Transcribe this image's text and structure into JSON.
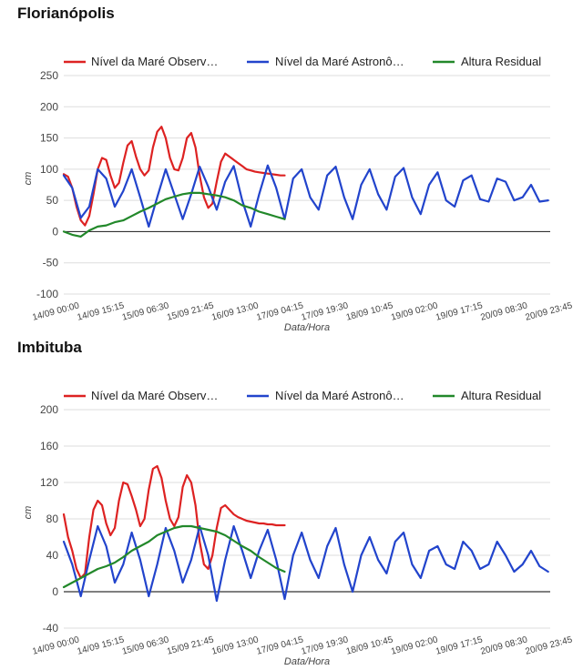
{
  "chart_data": [
    {
      "type": "line",
      "title": "Florianópolis",
      "xlabel": "Data/Hora",
      "ylabel": "cm",
      "ylim": [
        -100,
        250
      ],
      "yticks": [
        -100,
        -50,
        0,
        50,
        100,
        150,
        200,
        250
      ],
      "x_tick_labels": [
        "14/09 00:00",
        "14/09 15:15",
        "15/09 06:30",
        "15/09 21:45",
        "16/09 13:00",
        "17/09 04:15",
        "17/09 19:30",
        "18/09 10:45",
        "19/09 02:00",
        "19/09 17:15",
        "20/09 08:30",
        "20/09 23:45"
      ],
      "grid": true,
      "legend_position": "top",
      "series": [
        {
          "name": "Nível da Maré Observ…",
          "color": "#dd2222",
          "x": [
            0,
            0.1,
            0.2,
            0.3,
            0.4,
            0.5,
            0.6,
            0.7,
            0.8,
            0.9,
            1.0,
            1.1,
            1.2,
            1.3,
            1.4,
            1.5,
            1.6,
            1.7,
            1.8,
            1.9,
            2.0,
            2.1,
            2.2,
            2.3,
            2.4,
            2.5,
            2.6,
            2.7,
            2.8,
            2.9,
            3.0,
            3.1,
            3.2,
            3.3,
            3.4,
            3.5,
            3.6,
            3.7,
            3.8,
            3.9,
            4.0,
            4.1,
            4.2,
            4.3,
            4.4,
            4.5,
            4.6,
            4.7,
            4.8,
            4.9,
            5.0,
            5.1,
            5.2
          ],
          "y": [
            92,
            88,
            70,
            40,
            18,
            10,
            25,
            60,
            100,
            118,
            115,
            90,
            70,
            78,
            110,
            138,
            145,
            120,
            100,
            90,
            98,
            135,
            160,
            168,
            150,
            118,
            100,
            98,
            118,
            150,
            158,
            135,
            90,
            55,
            38,
            45,
            80,
            112,
            125,
            120,
            115,
            110,
            105,
            100,
            98,
            96,
            95,
            94,
            93,
            92,
            91,
            90,
            90
          ]
        },
        {
          "name": "Nível da Maré Astronô…",
          "color": "#2244cc",
          "x": [
            0,
            0.2,
            0.4,
            0.6,
            0.8,
            1.0,
            1.2,
            1.4,
            1.6,
            1.8,
            2.0,
            2.2,
            2.4,
            2.6,
            2.8,
            3.0,
            3.2,
            3.4,
            3.6,
            3.8,
            4.0,
            4.2,
            4.4,
            4.6,
            4.8,
            5.0,
            5.2,
            5.4,
            5.6,
            5.8,
            6.0,
            6.2,
            6.4,
            6.6,
            6.8,
            7.0,
            7.2,
            7.4,
            7.6,
            7.8,
            8.0,
            8.2,
            8.4,
            8.6,
            8.8,
            9.0,
            9.2,
            9.4,
            9.6,
            9.8,
            10.0,
            10.2,
            10.4,
            10.6,
            10.8,
            11.0,
            11.2,
            11.4
          ],
          "y": [
            90,
            70,
            22,
            40,
            100,
            85,
            40,
            65,
            100,
            55,
            8,
            55,
            100,
            60,
            20,
            60,
            104,
            72,
            35,
            80,
            105,
            50,
            8,
            60,
            106,
            70,
            20,
            85,
            100,
            55,
            35,
            90,
            104,
            55,
            20,
            75,
            100,
            60,
            35,
            88,
            102,
            55,
            28,
            75,
            95,
            50,
            40,
            82,
            90,
            52,
            48,
            85,
            80,
            50,
            55,
            75,
            48,
            50
          ]
        },
        {
          "name": "Altura Residual",
          "color": "#22882a",
          "x": [
            0,
            0.2,
            0.4,
            0.6,
            0.8,
            1.0,
            1.2,
            1.4,
            1.6,
            1.8,
            2.0,
            2.2,
            2.4,
            2.6,
            2.8,
            3.0,
            3.2,
            3.4,
            3.6,
            3.8,
            4.0,
            4.2,
            4.4,
            4.6,
            4.8,
            5.0,
            5.2
          ],
          "y": [
            0,
            -5,
            -8,
            2,
            8,
            10,
            15,
            18,
            25,
            32,
            38,
            45,
            52,
            56,
            60,
            62,
            62,
            60,
            58,
            55,
            50,
            42,
            38,
            32,
            28,
            24,
            20
          ]
        }
      ]
    },
    {
      "type": "line",
      "title": "Imbituba",
      "xlabel": "Data/Hora",
      "ylabel": "cm",
      "ylim": [
        -40,
        200
      ],
      "yticks": [
        -40,
        0,
        40,
        80,
        120,
        160,
        200
      ],
      "x_tick_labels": [
        "14/09 00:00",
        "14/09 15:15",
        "15/09 06:30",
        "15/09 21:45",
        "16/09 13:00",
        "17/09 04:15",
        "17/09 19:30",
        "18/09 10:45",
        "19/09 02:00",
        "19/09 17:15",
        "20/09 08:30",
        "20/09 23:45"
      ],
      "grid": true,
      "legend_position": "top",
      "series": [
        {
          "name": "Nível da Maré Observ…",
          "color": "#dd2222",
          "x": [
            0,
            0.1,
            0.2,
            0.3,
            0.4,
            0.5,
            0.6,
            0.7,
            0.8,
            0.9,
            1.0,
            1.1,
            1.2,
            1.3,
            1.4,
            1.5,
            1.6,
            1.7,
            1.8,
            1.9,
            2.0,
            2.1,
            2.2,
            2.3,
            2.4,
            2.5,
            2.6,
            2.7,
            2.8,
            2.9,
            3.0,
            3.1,
            3.2,
            3.3,
            3.4,
            3.5,
            3.6,
            3.7,
            3.8,
            3.9,
            4.0,
            4.1,
            4.2,
            4.3,
            4.4,
            4.5,
            4.6,
            4.7,
            4.8,
            4.9,
            5.0,
            5.1,
            5.2
          ],
          "y": [
            85,
            60,
            45,
            25,
            15,
            20,
            60,
            90,
            100,
            95,
            75,
            62,
            70,
            100,
            120,
            118,
            105,
            90,
            72,
            80,
            112,
            135,
            138,
            125,
            100,
            80,
            72,
            82,
            115,
            128,
            120,
            95,
            55,
            30,
            25,
            40,
            70,
            92,
            95,
            90,
            85,
            82,
            80,
            78,
            77,
            76,
            75,
            75,
            74,
            74,
            73,
            73,
            73
          ]
        },
        {
          "name": "Nível da Maré Astronô…",
          "color": "#2244cc",
          "x": [
            0,
            0.2,
            0.4,
            0.6,
            0.8,
            1.0,
            1.2,
            1.4,
            1.6,
            1.8,
            2.0,
            2.2,
            2.4,
            2.6,
            2.8,
            3.0,
            3.2,
            3.4,
            3.6,
            3.8,
            4.0,
            4.2,
            4.4,
            4.6,
            4.8,
            5.0,
            5.2,
            5.4,
            5.6,
            5.8,
            6.0,
            6.2,
            6.4,
            6.6,
            6.8,
            7.0,
            7.2,
            7.4,
            7.6,
            7.8,
            8.0,
            8.2,
            8.4,
            8.6,
            8.8,
            9.0,
            9.2,
            9.4,
            9.6,
            9.8,
            10.0,
            10.2,
            10.4,
            10.6,
            10.8,
            11.0,
            11.2,
            11.4
          ],
          "y": [
            55,
            30,
            -5,
            35,
            72,
            50,
            10,
            30,
            65,
            35,
            -5,
            30,
            70,
            45,
            10,
            35,
            72,
            40,
            -10,
            35,
            72,
            45,
            15,
            45,
            68,
            35,
            -8,
            40,
            65,
            35,
            15,
            50,
            70,
            30,
            0,
            40,
            60,
            35,
            20,
            55,
            65,
            30,
            15,
            45,
            50,
            30,
            25,
            55,
            45,
            25,
            30,
            55,
            40,
            22,
            30,
            45,
            28,
            22
          ]
        },
        {
          "name": "Altura Residual",
          "color": "#22882a",
          "x": [
            0,
            0.2,
            0.4,
            0.6,
            0.8,
            1.0,
            1.2,
            1.4,
            1.6,
            1.8,
            2.0,
            2.2,
            2.4,
            2.6,
            2.8,
            3.0,
            3.2,
            3.4,
            3.6,
            3.8,
            4.0,
            4.2,
            4.4,
            4.6,
            4.8,
            5.0,
            5.2
          ],
          "y": [
            5,
            10,
            15,
            20,
            25,
            28,
            32,
            38,
            45,
            50,
            55,
            62,
            66,
            70,
            72,
            72,
            70,
            68,
            66,
            62,
            56,
            50,
            45,
            38,
            32,
            26,
            22
          ]
        }
      ]
    }
  ]
}
